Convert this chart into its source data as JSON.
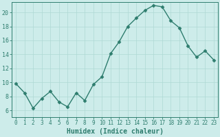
{
  "x": [
    0,
    1,
    2,
    3,
    4,
    5,
    6,
    7,
    8,
    9,
    10,
    11,
    12,
    13,
    14,
    15,
    16,
    17,
    18,
    19,
    20,
    21,
    22,
    23
  ],
  "y": [
    9.8,
    8.5,
    6.3,
    7.7,
    8.7,
    7.2,
    6.5,
    8.5,
    7.4,
    9.7,
    10.8,
    14.1,
    15.8,
    18.0,
    19.2,
    20.3,
    21.0,
    20.8,
    18.8,
    17.8,
    15.2,
    13.6,
    14.5,
    13.2
  ],
  "xlabel": "Humidex (Indice chaleur)",
  "ylim": [
    5,
    21.5
  ],
  "yticks": [
    6,
    8,
    10,
    12,
    14,
    16,
    18,
    20
  ],
  "xtick_labels": [
    "0",
    "1",
    "2",
    "3",
    "4",
    "5",
    "6",
    "7",
    "8",
    "9",
    "10",
    "11",
    "12",
    "13",
    "14",
    "15",
    "16",
    "17",
    "18",
    "19",
    "20",
    "21",
    "22",
    "23"
  ],
  "line_color": "#2e7d6e",
  "marker": "D",
  "marker_size": 2.5,
  "bg_color": "#cdecea",
  "grid_color": "#aed8d4",
  "xlabel_color": "#2e7d6e",
  "tick_color": "#2e7d6e",
  "tick_fontsize": 5.5,
  "xlabel_fontsize": 7.0,
  "linewidth": 1.0
}
